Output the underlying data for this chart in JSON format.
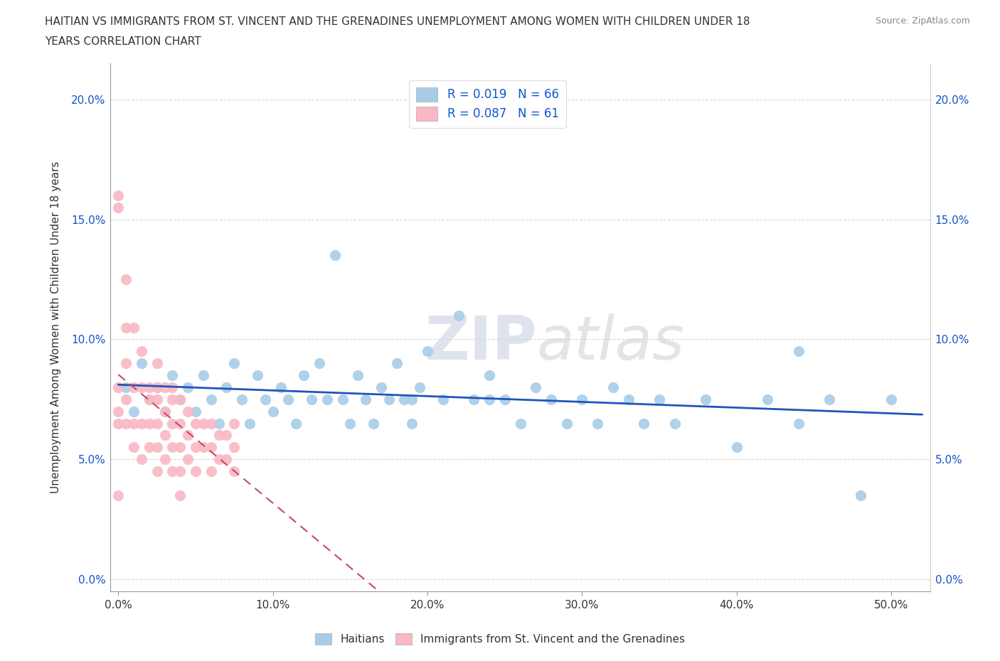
{
  "title_line1": "HAITIAN VS IMMIGRANTS FROM ST. VINCENT AND THE GRENADINES UNEMPLOYMENT AMONG WOMEN WITH CHILDREN UNDER 18",
  "title_line2": "YEARS CORRELATION CHART",
  "source": "Source: ZipAtlas.com",
  "xlabel_ticks": [
    "0.0%",
    "10.0%",
    "20.0%",
    "30.0%",
    "40.0%",
    "50.0%"
  ],
  "xlabel_vals": [
    0.0,
    0.1,
    0.2,
    0.3,
    0.4,
    0.5
  ],
  "ylabel": "Unemployment Among Women with Children Under 18 years",
  "ylabel_ticks": [
    "0.0%",
    "5.0%",
    "10.0%",
    "15.0%",
    "20.0%"
  ],
  "ylabel_vals": [
    0.0,
    0.05,
    0.1,
    0.15,
    0.2
  ],
  "ylim": [
    -0.005,
    0.215
  ],
  "xlim": [
    -0.005,
    0.525
  ],
  "legend_r1": "R = 0.019",
  "legend_n1": "N = 66",
  "legend_r2": "R = 0.087",
  "legend_n2": "N = 61",
  "color_blue": "#a8cce8",
  "color_pink": "#f9b8c4",
  "color_trendline_blue": "#2255bb",
  "color_trendline_pink": "#cc4466",
  "watermark_zip": "ZIP",
  "watermark_atlas": "atlas",
  "haitians_x": [
    0.005,
    0.01,
    0.015,
    0.02,
    0.025,
    0.03,
    0.035,
    0.04,
    0.045,
    0.05,
    0.055,
    0.06,
    0.065,
    0.07,
    0.075,
    0.08,
    0.085,
    0.09,
    0.095,
    0.1,
    0.105,
    0.11,
    0.115,
    0.12,
    0.125,
    0.13,
    0.135,
    0.14,
    0.145,
    0.15,
    0.155,
    0.16,
    0.165,
    0.17,
    0.175,
    0.18,
    0.185,
    0.19,
    0.195,
    0.2,
    0.21,
    0.22,
    0.23,
    0.24,
    0.25,
    0.26,
    0.27,
    0.28,
    0.29,
    0.3,
    0.31,
    0.32,
    0.33,
    0.34,
    0.35,
    0.36,
    0.38,
    0.4,
    0.42,
    0.44,
    0.46,
    0.48,
    0.5,
    0.24,
    0.19,
    0.44
  ],
  "haitians_y": [
    0.08,
    0.07,
    0.09,
    0.075,
    0.08,
    0.07,
    0.085,
    0.075,
    0.08,
    0.07,
    0.085,
    0.075,
    0.065,
    0.08,
    0.09,
    0.075,
    0.065,
    0.085,
    0.075,
    0.07,
    0.08,
    0.075,
    0.065,
    0.085,
    0.075,
    0.09,
    0.075,
    0.135,
    0.075,
    0.065,
    0.085,
    0.075,
    0.065,
    0.08,
    0.075,
    0.09,
    0.075,
    0.065,
    0.08,
    0.095,
    0.075,
    0.11,
    0.075,
    0.085,
    0.075,
    0.065,
    0.08,
    0.075,
    0.065,
    0.075,
    0.065,
    0.08,
    0.075,
    0.065,
    0.075,
    0.065,
    0.075,
    0.055,
    0.075,
    0.065,
    0.075,
    0.035,
    0.075,
    0.075,
    0.075,
    0.095
  ],
  "svg_x": [
    0.0,
    0.0,
    0.0,
    0.0,
    0.0,
    0.005,
    0.005,
    0.005,
    0.005,
    0.005,
    0.01,
    0.01,
    0.01,
    0.01,
    0.015,
    0.015,
    0.015,
    0.015,
    0.02,
    0.02,
    0.02,
    0.02,
    0.025,
    0.025,
    0.025,
    0.025,
    0.025,
    0.025,
    0.03,
    0.03,
    0.03,
    0.03,
    0.035,
    0.035,
    0.035,
    0.035,
    0.035,
    0.04,
    0.04,
    0.04,
    0.04,
    0.04,
    0.045,
    0.045,
    0.045,
    0.05,
    0.05,
    0.05,
    0.055,
    0.055,
    0.06,
    0.06,
    0.06,
    0.065,
    0.065,
    0.07,
    0.07,
    0.075,
    0.075,
    0.075,
    0.0
  ],
  "svg_y": [
    0.16,
    0.155,
    0.08,
    0.07,
    0.065,
    0.125,
    0.105,
    0.09,
    0.075,
    0.065,
    0.105,
    0.08,
    0.065,
    0.055,
    0.095,
    0.08,
    0.065,
    0.05,
    0.08,
    0.075,
    0.065,
    0.055,
    0.09,
    0.08,
    0.075,
    0.065,
    0.055,
    0.045,
    0.08,
    0.07,
    0.06,
    0.05,
    0.08,
    0.075,
    0.065,
    0.055,
    0.045,
    0.075,
    0.065,
    0.055,
    0.045,
    0.035,
    0.07,
    0.06,
    0.05,
    0.065,
    0.055,
    0.045,
    0.065,
    0.055,
    0.065,
    0.055,
    0.045,
    0.06,
    0.05,
    0.06,
    0.05,
    0.065,
    0.055,
    0.045,
    0.035
  ]
}
